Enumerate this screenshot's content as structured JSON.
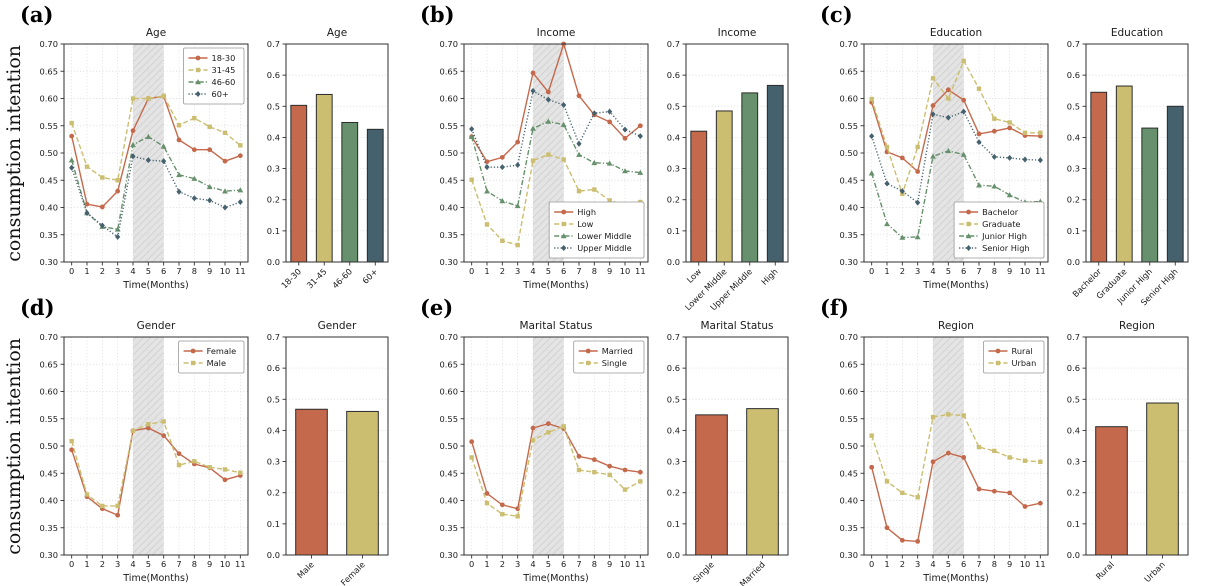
{
  "figure": {
    "ylabel": "consumption intention",
    "xlabel": "Time(Months)",
    "palette": {
      "s1": "#C4694C",
      "s2": "#CBBE70",
      "s3": "#67906C",
      "s4": "#46616E"
    },
    "band_fill": "#e4e4e4",
    "band_hatch": "#cbcbcb",
    "grid_color": "#d6d6d6",
    "spine_color": "#2f2f2f"
  },
  "chart_data": [
    {
      "label": "(a)",
      "line": {
        "type": "line",
        "title": "Age",
        "xlabel": "Time(Months)",
        "ylabel": "consumption intention",
        "x": [
          0,
          1,
          2,
          3,
          4,
          5,
          6,
          7,
          8,
          9,
          10,
          11
        ],
        "ylim": [
          0.3,
          0.7
        ],
        "ytick_step": 0.05,
        "shaded_band": [
          4,
          6
        ],
        "legend_position": "top-right",
        "grid": true,
        "series": [
          {
            "name": "18-30",
            "color": "s1",
            "dash": "solid",
            "marker": "circle",
            "values": [
              0.531,
              0.406,
              0.401,
              0.43,
              0.541,
              0.6,
              0.604,
              0.524,
              0.506,
              0.506,
              0.485,
              0.495
            ]
          },
          {
            "name": "31-45",
            "color": "s2",
            "dash": "dashed",
            "marker": "square",
            "values": [
              0.555,
              0.475,
              0.455,
              0.45,
              0.6,
              0.6,
              0.605,
              0.551,
              0.564,
              0.548,
              0.537,
              0.514
            ]
          },
          {
            "name": "46-60",
            "color": "s3",
            "dash": "dashdot",
            "marker": "triangle",
            "values": [
              0.487,
              0.39,
              0.365,
              0.36,
              0.515,
              0.53,
              0.512,
              0.46,
              0.453,
              0.438,
              0.43,
              0.432
            ]
          },
          {
            "name": "60+",
            "color": "s4",
            "dash": "dotted",
            "marker": "diamond",
            "values": [
              0.473,
              0.39,
              0.367,
              0.346,
              0.494,
              0.487,
              0.485,
              0.429,
              0.417,
              0.413,
              0.4,
              0.41
            ]
          }
        ]
      },
      "bar": {
        "type": "bar",
        "title": "Age",
        "ylim": [
          0.0,
          0.7
        ],
        "ytick_step": 0.1,
        "categories": [
          "18-30",
          "31-45",
          "46-60",
          "60+"
        ],
        "values": [
          0.503,
          0.538,
          0.448,
          0.426
        ],
        "colors": [
          "s1",
          "s2",
          "s3",
          "s4"
        ]
      }
    },
    {
      "label": "(b)",
      "line": {
        "type": "line",
        "title": "Income",
        "xlabel": "Time(Months)",
        "ylabel": "",
        "x": [
          0,
          1,
          2,
          3,
          4,
          5,
          6,
          7,
          8,
          9,
          10,
          11
        ],
        "ylim": [
          0.3,
          0.7
        ],
        "ytick_step": 0.05,
        "shaded_band": [
          4,
          6
        ],
        "legend_position": "bottom-right",
        "grid": true,
        "series": [
          {
            "name": "High",
            "color": "s1",
            "dash": "solid",
            "marker": "circle",
            "values": [
              0.53,
              0.484,
              0.492,
              0.52,
              0.647,
              0.612,
              0.7,
              0.605,
              0.57,
              0.557,
              0.527,
              0.55
            ]
          },
          {
            "name": "Low",
            "color": "s2",
            "dash": "dashed",
            "marker": "square",
            "values": [
              0.451,
              0.369,
              0.339,
              0.331,
              0.486,
              0.497,
              0.488,
              0.43,
              0.433,
              0.413,
              0.405,
              0.41
            ]
          },
          {
            "name": "Lower Middle",
            "color": "s3",
            "dash": "dashdot",
            "marker": "triangle",
            "values": [
              0.53,
              0.43,
              0.412,
              0.403,
              0.545,
              0.558,
              0.552,
              0.497,
              0.482,
              0.481,
              0.467,
              0.464
            ]
          },
          {
            "name": "Upper Middle",
            "color": "s4",
            "dash": "dotted",
            "marker": "diamond",
            "values": [
              0.544,
              0.474,
              0.474,
              0.478,
              0.614,
              0.598,
              0.588,
              0.517,
              0.573,
              0.576,
              0.543,
              0.531
            ]
          }
        ]
      },
      "bar": {
        "type": "bar",
        "title": "Income",
        "ylim": [
          0.0,
          0.7
        ],
        "ytick_step": 0.1,
        "categories": [
          "Low",
          "Lower Middle",
          "Upper Middle",
          "High"
        ],
        "values": [
          0.42,
          0.485,
          0.543,
          0.567
        ],
        "colors": [
          "s1",
          "s2",
          "s3",
          "s4"
        ]
      }
    },
    {
      "label": "(c)",
      "line": {
        "type": "line",
        "title": "Education",
        "xlabel": "Time(Months)",
        "ylabel": "",
        "x": [
          0,
          1,
          2,
          3,
          4,
          5,
          6,
          7,
          8,
          9,
          10,
          11
        ],
        "ylim": [
          0.3,
          0.7
        ],
        "ytick_step": 0.05,
        "shaded_band": [
          4,
          6
        ],
        "legend_position": "bottom-right",
        "grid": true,
        "series": [
          {
            "name": "Bachelor",
            "color": "s1",
            "dash": "solid",
            "marker": "circle",
            "values": [
              0.593,
              0.502,
              0.491,
              0.466,
              0.587,
              0.616,
              0.597,
              0.535,
              0.54,
              0.546,
              0.532,
              0.531
            ]
          },
          {
            "name": "Graduate",
            "color": "s2",
            "dash": "dashed",
            "marker": "square",
            "values": [
              0.599,
              0.511,
              0.425,
              0.511,
              0.637,
              0.6,
              0.669,
              0.618,
              0.563,
              0.556,
              0.537,
              0.537
            ]
          },
          {
            "name": "Junior High",
            "color": "s3",
            "dash": "dashdot",
            "marker": "triangle",
            "values": [
              0.463,
              0.37,
              0.345,
              0.346,
              0.494,
              0.504,
              0.497,
              0.441,
              0.439,
              0.423,
              0.41,
              0.411
            ]
          },
          {
            "name": "Senior High",
            "color": "s4",
            "dash": "dotted",
            "marker": "diamond",
            "values": [
              0.531,
              0.444,
              0.43,
              0.409,
              0.571,
              0.565,
              0.576,
              0.52,
              0.493,
              0.491,
              0.488,
              0.487
            ]
          }
        ]
      },
      "bar": {
        "type": "bar",
        "title": "Education",
        "ylim": [
          0.0,
          0.7
        ],
        "ytick_step": 0.1,
        "categories": [
          "Bachelor",
          "Graduate",
          "Junior High",
          "Senior High"
        ],
        "values": [
          0.545,
          0.565,
          0.43,
          0.5
        ],
        "colors": [
          "s1",
          "s2",
          "s3",
          "s4"
        ]
      }
    },
    {
      "label": "(d)",
      "line": {
        "type": "line",
        "title": "Gender",
        "xlabel": "Time(Months)",
        "ylabel": "consumption intention",
        "x": [
          0,
          1,
          2,
          3,
          4,
          5,
          6,
          7,
          8,
          9,
          10,
          11
        ],
        "ylim": [
          0.3,
          0.7
        ],
        "ytick_step": 0.05,
        "shaded_band": [
          4,
          6
        ],
        "legend_position": "top-right",
        "grid": true,
        "series": [
          {
            "name": "Female",
            "color": "s1",
            "dash": "solid",
            "marker": "circle",
            "values": [
              0.493,
              0.407,
              0.385,
              0.373,
              0.528,
              0.533,
              0.519,
              0.486,
              0.467,
              0.46,
              0.438,
              0.446
            ]
          },
          {
            "name": "Male",
            "color": "s2",
            "dash": "dashed",
            "marker": "square",
            "values": [
              0.509,
              0.411,
              0.39,
              0.39,
              0.528,
              0.54,
              0.545,
              0.465,
              0.472,
              0.461,
              0.457,
              0.451
            ]
          }
        ]
      },
      "bar": {
        "type": "bar",
        "title": "Gender",
        "ylim": [
          0.0,
          0.7
        ],
        "ytick_step": 0.1,
        "categories": [
          "Male",
          "Female"
        ],
        "values": [
          0.468,
          0.461
        ],
        "colors": [
          "s1",
          "s2"
        ]
      }
    },
    {
      "label": "(e)",
      "line": {
        "type": "line",
        "title": "Marital Status",
        "xlabel": "Time(Months)",
        "ylabel": "",
        "x": [
          0,
          1,
          2,
          3,
          4,
          5,
          6,
          7,
          8,
          9,
          10,
          11
        ],
        "ylim": [
          0.3,
          0.7
        ],
        "ytick_step": 0.05,
        "shaded_band": [
          4,
          6
        ],
        "legend_position": "top-right",
        "grid": true,
        "series": [
          {
            "name": "Married",
            "color": "s1",
            "dash": "solid",
            "marker": "circle",
            "values": [
              0.508,
              0.413,
              0.392,
              0.385,
              0.533,
              0.541,
              0.532,
              0.481,
              0.475,
              0.463,
              0.456,
              0.452
            ]
          },
          {
            "name": "Single",
            "color": "s2",
            "dash": "dashed",
            "marker": "square",
            "values": [
              0.479,
              0.395,
              0.375,
              0.371,
              0.511,
              0.525,
              0.536,
              0.456,
              0.452,
              0.447,
              0.42,
              0.435
            ]
          }
        ]
      },
      "bar": {
        "type": "bar",
        "title": "Marital Status",
        "ylim": [
          0.0,
          0.7
        ],
        "ytick_step": 0.1,
        "categories": [
          "Single",
          "Married"
        ],
        "values": [
          0.45,
          0.47
        ],
        "colors": [
          "s1",
          "s2"
        ]
      }
    },
    {
      "label": "(f)",
      "line": {
        "type": "line",
        "title": "Region",
        "xlabel": "Time(Months)",
        "ylabel": "",
        "x": [
          0,
          1,
          2,
          3,
          4,
          5,
          6,
          7,
          8,
          9,
          10,
          11
        ],
        "ylim": [
          0.3,
          0.7
        ],
        "ytick_step": 0.05,
        "shaded_band": [
          4,
          6
        ],
        "legend_position": "top-right",
        "grid": true,
        "series": [
          {
            "name": "Rural",
            "color": "s1",
            "dash": "solid",
            "marker": "circle",
            "values": [
              0.461,
              0.35,
              0.327,
              0.325,
              0.471,
              0.487,
              0.479,
              0.421,
              0.417,
              0.414,
              0.389,
              0.395
            ]
          },
          {
            "name": "Urban",
            "color": "s2",
            "dash": "dashed",
            "marker": "square",
            "values": [
              0.519,
              0.435,
              0.414,
              0.406,
              0.553,
              0.558,
              0.556,
              0.498,
              0.491,
              0.479,
              0.473,
              0.471
            ]
          }
        ]
      },
      "bar": {
        "type": "bar",
        "title": "Region",
        "ylim": [
          0.0,
          0.7
        ],
        "ytick_step": 0.1,
        "categories": [
          "Rural",
          "Urban"
        ],
        "values": [
          0.412,
          0.488
        ],
        "colors": [
          "s1",
          "s2"
        ]
      }
    }
  ]
}
